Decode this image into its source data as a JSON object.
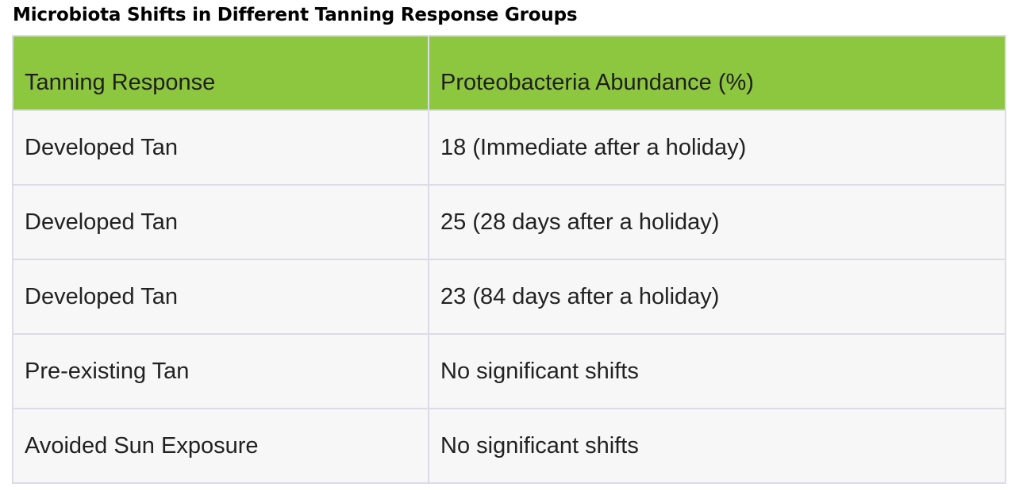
{
  "title": "Microbiota Shifts in Different Tanning Response Groups",
  "colors": {
    "header_bg": "#8dc63f",
    "row_bg": "#f7f7f7",
    "border": "#dcdce6"
  },
  "table": {
    "headers": [
      "Tanning Response",
      "Proteobacteria Abundance (%)"
    ],
    "rows": [
      [
        "Developed Tan",
        "18 (Immediate after a holiday)"
      ],
      [
        "Developed Tan",
        "25 (28 days after a holiday)"
      ],
      [
        "Developed Tan",
        "23 (84 days after a holiday)"
      ],
      [
        "Pre-existing Tan",
        "No significant shifts"
      ],
      [
        "Avoided Sun Exposure",
        "No significant shifts"
      ]
    ]
  }
}
